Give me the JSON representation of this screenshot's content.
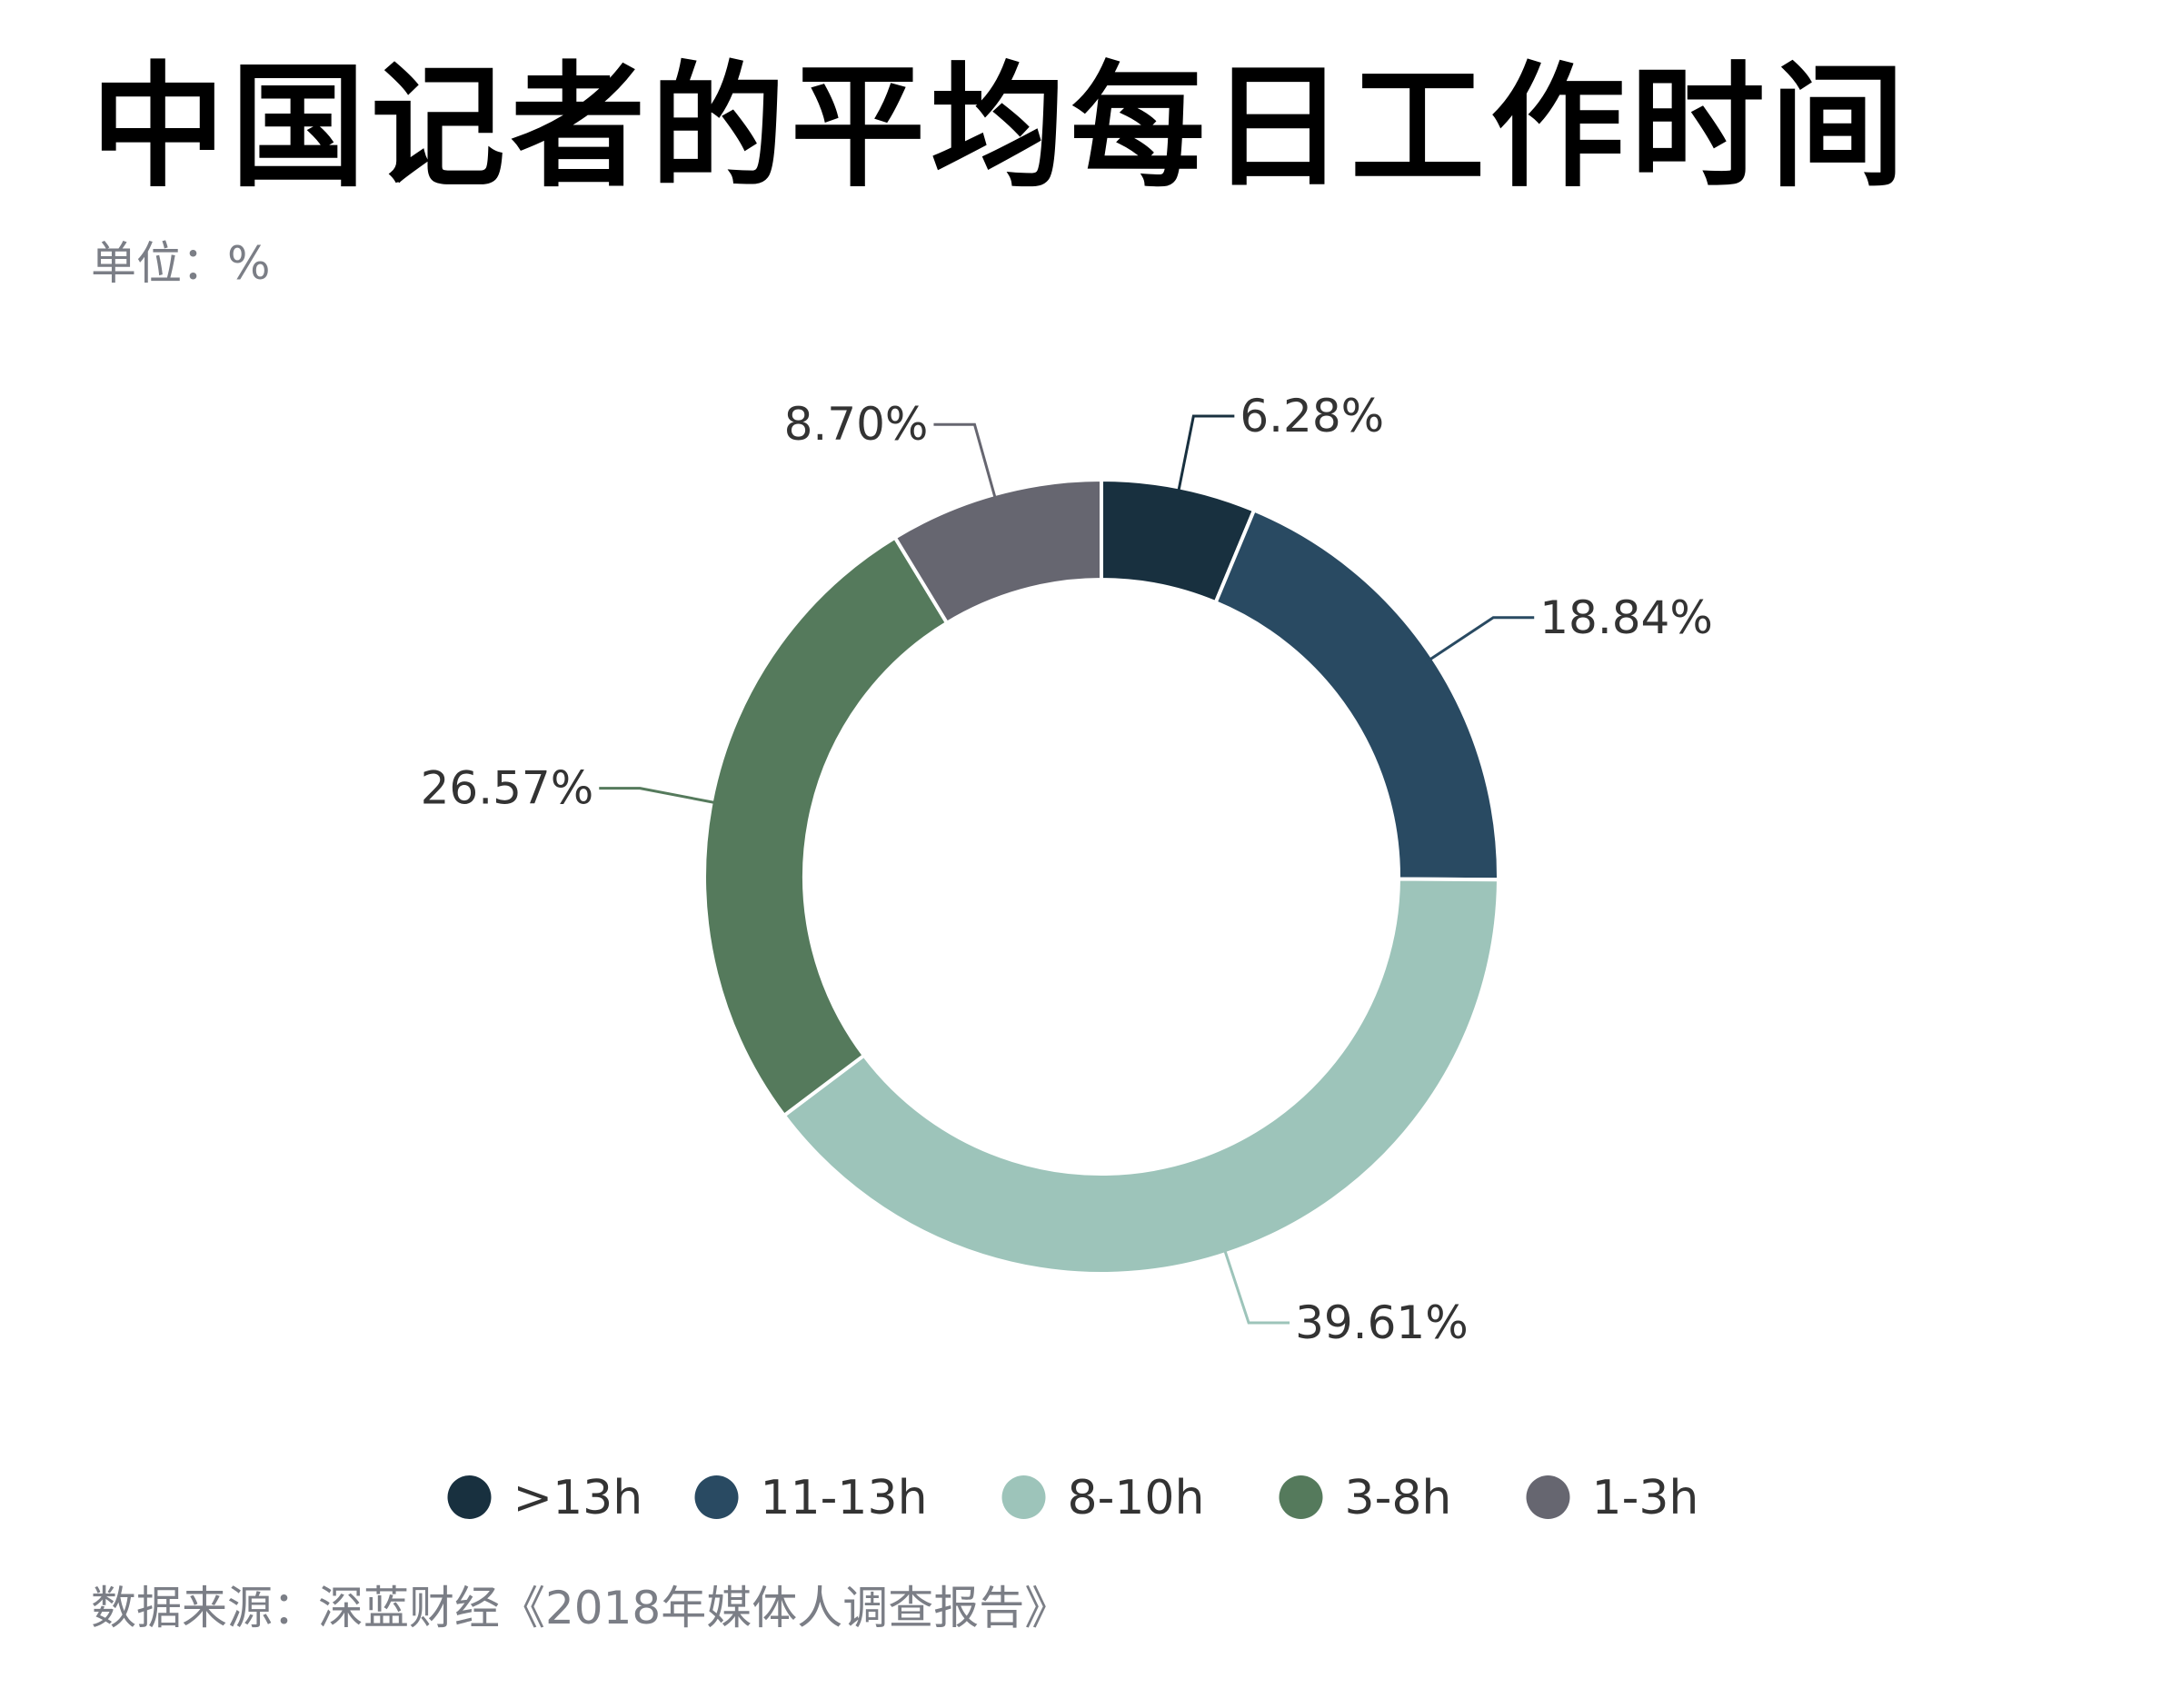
{
  "title": "中国记者的平均每日工作时间",
  "unit": "单位：%",
  "source": "数据来源：深蓝财经《2018年媒体人调查报告》",
  "chart_data": {
    "type": "pie",
    "variant": "donut",
    "slices": [
      {
        "name": ">13h",
        "value": 6.28,
        "label": "6.28%",
        "color": "#18303f"
      },
      {
        "name": "11-13h",
        "value": 18.84,
        "label": "18.84%",
        "color": "#294a62"
      },
      {
        "name": "8-10h",
        "value": 39.61,
        "label": "39.61%",
        "color": "#9dc4ba"
      },
      {
        "name": "3-8h",
        "value": 26.57,
        "label": "26.57%",
        "color": "#557a5c"
      },
      {
        "name": "1-3h",
        "value": 8.7,
        "label": "8.70%",
        "color": "#666670"
      }
    ],
    "legend_position": "bottom"
  }
}
